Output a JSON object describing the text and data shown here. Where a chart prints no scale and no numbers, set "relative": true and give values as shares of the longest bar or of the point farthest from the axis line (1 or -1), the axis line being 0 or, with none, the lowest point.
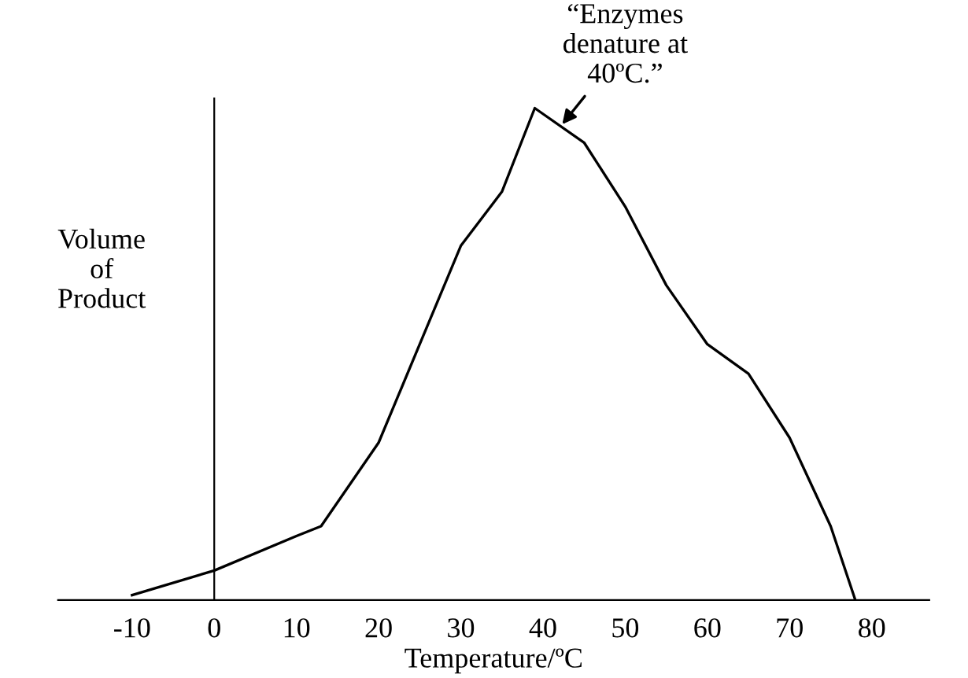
{
  "chart_data": {
    "type": "line",
    "relative": true,
    "xlabel": "Temperature/ºC",
    "ylabel": "Volume\nof\nProduct",
    "x": [
      -10,
      0,
      10,
      13,
      20,
      25,
      30,
      35,
      39,
      45,
      50,
      55,
      60,
      65,
      70,
      75,
      78
    ],
    "values": [
      0.01,
      0.06,
      0.13,
      0.15,
      0.32,
      0.52,
      0.72,
      0.83,
      1.0,
      0.93,
      0.8,
      0.64,
      0.52,
      0.46,
      0.33,
      0.15,
      0.0
    ],
    "color": "#000000",
    "xlim": [
      -19,
      87
    ],
    "xticks": [
      -10,
      0,
      10,
      20,
      30,
      40,
      50,
      60,
      70,
      80
    ],
    "legend": false,
    "marker": "none",
    "line_style": "solid",
    "annotations": [
      {
        "text": "“Enzymes\ndenature at\n40ºC.”",
        "x": 42,
        "y": 0.96
      }
    ]
  }
}
